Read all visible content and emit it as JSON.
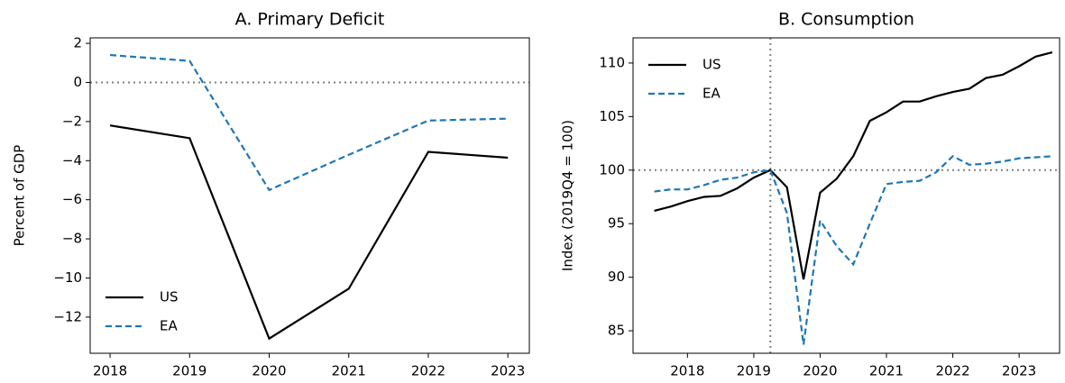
{
  "chart_data": [
    {
      "type": "line",
      "title": "A. Primary Deficit",
      "y_label": "Percent of GDP",
      "x": [
        2018,
        2019,
        2020,
        2021,
        2022,
        2023
      ],
      "series": [
        {
          "name": "US",
          "color": "#000000",
          "linestyle": "solid",
          "values": [
            -2.2,
            -2.85,
            -13.1,
            -10.55,
            -3.55,
            -3.85
          ]
        },
        {
          "name": "EA",
          "color": "#1f77b4",
          "linestyle": "dashed",
          "values": [
            1.4,
            1.1,
            -5.5,
            -3.7,
            -1.95,
            -1.85
          ]
        }
      ],
      "xlim": [
        2017.75,
        2023.27
      ],
      "xticks": [
        2018,
        2019,
        2020,
        2021,
        2022,
        2023
      ],
      "ylim": [
        -13.85,
        2.28
      ],
      "yticks": [
        {
          "value": -12,
          "label": "−12"
        },
        {
          "value": -10,
          "label": "−10"
        },
        {
          "value": -8,
          "label": "−8"
        },
        {
          "value": -6,
          "label": "−6"
        },
        {
          "value": -4,
          "label": "−4"
        },
        {
          "value": -2,
          "label": "−2"
        },
        0,
        2
      ],
      "hlines": [
        0
      ],
      "legend": "lower left"
    },
    {
      "type": "line",
      "title": "B. Consumption",
      "y_label": "Index (2019Q4 = 100)",
      "x": [
        2017.5,
        2017.75,
        2018.0,
        2018.25,
        2018.5,
        2018.75,
        2019.0,
        2019.25,
        2019.5,
        2019.75,
        2020.0,
        2020.25,
        2020.5,
        2020.75,
        2021.0,
        2021.25,
        2021.5,
        2021.75,
        2022.0,
        2022.25,
        2022.5,
        2022.75,
        2023.0,
        2023.25,
        2023.5
      ],
      "series": [
        {
          "name": "US",
          "color": "#000000",
          "linestyle": "solid",
          "values": [
            96.2,
            96.6,
            97.1,
            97.5,
            97.6,
            98.3,
            99.3,
            100,
            98.4,
            89.8,
            97.9,
            99.2,
            101.3,
            104.6,
            105.4,
            106.4,
            106.4,
            106.9,
            107.3,
            107.6,
            108.6,
            108.9,
            109.7,
            110.6,
            111.0
          ]
        },
        {
          "name": "EA",
          "color": "#1f77b4",
          "linestyle": "dashed",
          "values": [
            98.0,
            98.2,
            98.2,
            98.6,
            99.1,
            99.3,
            99.8,
            100,
            96.0,
            83.7,
            95.3,
            92.9,
            91.2,
            95.0,
            98.7,
            98.9,
            99.0,
            99.8,
            101.3,
            100.5,
            100.6,
            100.8,
            101.1,
            101.2,
            101.3
          ]
        }
      ],
      "xlim": [
        2017.18,
        2023.61
      ],
      "xticks": [
        2018,
        2019,
        2020,
        2021,
        2022,
        2023
      ],
      "ylim": [
        82.9,
        112.35
      ],
      "yticks": [
        85,
        90,
        95,
        100,
        105,
        110
      ],
      "hlines": [
        100
      ],
      "vlines": [
        2019.25
      ],
      "legend": "upper left"
    }
  ]
}
